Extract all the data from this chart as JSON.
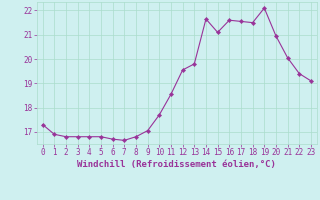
{
  "x": [
    0,
    1,
    2,
    3,
    4,
    5,
    6,
    7,
    8,
    9,
    10,
    11,
    12,
    13,
    14,
    15,
    16,
    17,
    18,
    19,
    20,
    21,
    22,
    23
  ],
  "y": [
    17.3,
    16.9,
    16.8,
    16.8,
    16.8,
    16.8,
    16.7,
    16.65,
    16.8,
    17.05,
    17.7,
    18.55,
    19.55,
    19.8,
    21.65,
    21.1,
    21.6,
    21.55,
    21.5,
    22.1,
    20.95,
    20.05,
    19.4,
    19.1
  ],
  "line_color": "#993399",
  "marker": "D",
  "marker_size": 2.2,
  "bg_color": "#cff0f0",
  "grid_color": "#aaddcc",
  "xlabel": "Windchill (Refroidissement éolien,°C)",
  "ylim": [
    16.5,
    22.35
  ],
  "xlim": [
    -0.5,
    23.5
  ],
  "yticks": [
    17,
    18,
    19,
    20,
    21,
    22
  ],
  "xticks": [
    0,
    1,
    2,
    3,
    4,
    5,
    6,
    7,
    8,
    9,
    10,
    11,
    12,
    13,
    14,
    15,
    16,
    17,
    18,
    19,
    20,
    21,
    22,
    23
  ],
  "tick_label_fontsize": 5.5,
  "xlabel_fontsize": 6.5,
  "line_width": 0.8
}
